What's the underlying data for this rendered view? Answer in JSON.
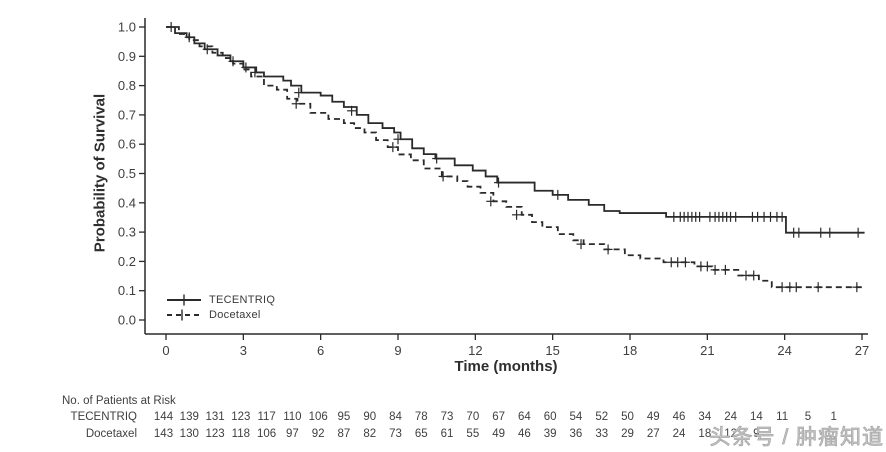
{
  "chart_data": {
    "type": "line",
    "subtype": "kaplan-meier-step",
    "title": "",
    "xlabel": "Time (months)",
    "ylabel": "Probability of Survival",
    "xlim": [
      0,
      27
    ],
    "ylim": [
      0.0,
      1.0
    ],
    "x_ticks": [
      0,
      3,
      6,
      9,
      12,
      15,
      18,
      21,
      24,
      27
    ],
    "y_ticks": [
      "0.0",
      "0.1",
      "0.2",
      "0.3",
      "0.4",
      "0.5",
      "0.6",
      "0.7",
      "0.8",
      "0.9",
      "1.0"
    ],
    "grid": false,
    "legend_position": "inside-lower-left",
    "curve_color": "#2a2a2a",
    "series": [
      {
        "name": "TECENTRIQ",
        "style": "solid",
        "steps": [
          [
            0,
            1.0
          ],
          [
            0.35,
            0.979
          ],
          [
            0.8,
            0.965
          ],
          [
            1.1,
            0.944
          ],
          [
            1.5,
            0.924
          ],
          [
            2.0,
            0.903
          ],
          [
            2.5,
            0.883
          ],
          [
            3.0,
            0.862
          ],
          [
            3.5,
            0.845
          ],
          [
            3.8,
            0.831
          ],
          [
            4.55,
            0.817
          ],
          [
            4.85,
            0.8
          ],
          [
            5.25,
            0.776
          ],
          [
            6.0,
            0.766
          ],
          [
            6.45,
            0.745
          ],
          [
            6.9,
            0.727
          ],
          [
            7.4,
            0.7
          ],
          [
            7.85,
            0.672
          ],
          [
            8.4,
            0.655
          ],
          [
            8.85,
            0.64
          ],
          [
            9.1,
            0.617
          ],
          [
            9.55,
            0.586
          ],
          [
            10.0,
            0.566
          ],
          [
            10.45,
            0.551
          ],
          [
            11.2,
            0.528
          ],
          [
            11.9,
            0.51
          ],
          [
            12.4,
            0.49
          ],
          [
            12.85,
            0.469
          ],
          [
            14.3,
            0.441
          ],
          [
            15.0,
            0.427
          ],
          [
            15.6,
            0.41
          ],
          [
            16.4,
            0.393
          ],
          [
            17.0,
            0.372
          ],
          [
            17.6,
            0.365
          ],
          [
            19.4,
            0.352
          ],
          [
            24.05,
            0.298
          ],
          [
            27.1,
            0.298
          ]
        ],
        "censors": [
          [
            0.2,
            1.0
          ],
          [
            0.9,
            0.965
          ],
          [
            1.6,
            0.924
          ],
          [
            2.6,
            0.883
          ],
          [
            3.1,
            0.862
          ],
          [
            3.45,
            0.845
          ],
          [
            5.15,
            0.776
          ],
          [
            7.2,
            0.714
          ],
          [
            9.0,
            0.617
          ],
          [
            10.5,
            0.551
          ],
          [
            12.9,
            0.469
          ],
          [
            15.2,
            0.427
          ],
          [
            19.7,
            0.352
          ],
          [
            19.95,
            0.352
          ],
          [
            20.1,
            0.352
          ],
          [
            20.25,
            0.352
          ],
          [
            20.4,
            0.352
          ],
          [
            20.55,
            0.352
          ],
          [
            20.7,
            0.352
          ],
          [
            21.1,
            0.352
          ],
          [
            21.3,
            0.352
          ],
          [
            21.45,
            0.352
          ],
          [
            21.6,
            0.352
          ],
          [
            21.75,
            0.352
          ],
          [
            21.9,
            0.352
          ],
          [
            22.1,
            0.352
          ],
          [
            22.75,
            0.352
          ],
          [
            22.95,
            0.352
          ],
          [
            23.2,
            0.352
          ],
          [
            23.45,
            0.352
          ],
          [
            23.7,
            0.352
          ],
          [
            23.9,
            0.352
          ],
          [
            24.35,
            0.298
          ],
          [
            24.55,
            0.298
          ],
          [
            25.4,
            0.298
          ],
          [
            25.75,
            0.298
          ],
          [
            26.85,
            0.298
          ]
        ]
      },
      {
        "name": "Docetaxel",
        "style": "dashed",
        "steps": [
          [
            0,
            1.0
          ],
          [
            0.5,
            0.976
          ],
          [
            0.9,
            0.955
          ],
          [
            1.3,
            0.934
          ],
          [
            1.8,
            0.912
          ],
          [
            2.2,
            0.894
          ],
          [
            2.6,
            0.875
          ],
          [
            3.0,
            0.855
          ],
          [
            3.3,
            0.831
          ],
          [
            3.8,
            0.8
          ],
          [
            4.3,
            0.786
          ],
          [
            4.7,
            0.755
          ],
          [
            5.1,
            0.738
          ],
          [
            5.6,
            0.707
          ],
          [
            6.3,
            0.686
          ],
          [
            6.9,
            0.672
          ],
          [
            7.3,
            0.655
          ],
          [
            7.7,
            0.64
          ],
          [
            8.15,
            0.614
          ],
          [
            8.6,
            0.59
          ],
          [
            9.0,
            0.565
          ],
          [
            9.5,
            0.545
          ],
          [
            10.0,
            0.517
          ],
          [
            10.7,
            0.49
          ],
          [
            11.3,
            0.474
          ],
          [
            11.7,
            0.455
          ],
          [
            12.2,
            0.434
          ],
          [
            12.7,
            0.405
          ],
          [
            13.2,
            0.386
          ],
          [
            13.8,
            0.359
          ],
          [
            14.2,
            0.334
          ],
          [
            14.6,
            0.317
          ],
          [
            15.2,
            0.293
          ],
          [
            15.8,
            0.272
          ],
          [
            16.2,
            0.259
          ],
          [
            17.0,
            0.241
          ],
          [
            17.8,
            0.221
          ],
          [
            18.4,
            0.21
          ],
          [
            19.3,
            0.197
          ],
          [
            20.5,
            0.183
          ],
          [
            21.2,
            0.171
          ],
          [
            22.2,
            0.152
          ],
          [
            23.0,
            0.134
          ],
          [
            23.5,
            0.112
          ],
          [
            27.0,
            0.112
          ]
        ],
        "censors": [
          [
            5.05,
            0.738
          ],
          [
            8.8,
            0.59
          ],
          [
            10.75,
            0.49
          ],
          [
            12.6,
            0.405
          ],
          [
            13.6,
            0.359
          ],
          [
            16.1,
            0.259
          ],
          [
            17.15,
            0.241
          ],
          [
            19.6,
            0.197
          ],
          [
            19.85,
            0.197
          ],
          [
            20.15,
            0.197
          ],
          [
            20.75,
            0.183
          ],
          [
            21.0,
            0.183
          ],
          [
            21.3,
            0.171
          ],
          [
            21.7,
            0.171
          ],
          [
            22.5,
            0.152
          ],
          [
            22.8,
            0.152
          ],
          [
            23.9,
            0.112
          ],
          [
            24.2,
            0.112
          ],
          [
            24.45,
            0.112
          ],
          [
            25.3,
            0.112
          ],
          [
            26.8,
            0.112
          ]
        ]
      }
    ]
  },
  "risk_table": {
    "title": "No. of Patients at Risk",
    "rows": [
      {
        "label": "TECENTRIQ",
        "counts": [
          144,
          139,
          131,
          123,
          117,
          110,
          106,
          95,
          90,
          84,
          78,
          73,
          70,
          67,
          64,
          60,
          54,
          52,
          50,
          49,
          46,
          34,
          24,
          14,
          11,
          5,
          1
        ]
      },
      {
        "label": "Docetaxel",
        "counts": [
          143,
          130,
          123,
          118,
          106,
          97,
          92,
          87,
          82,
          73,
          65,
          61,
          55,
          49,
          46,
          39,
          36,
          33,
          29,
          27,
          24,
          18,
          12,
          9
        ]
      }
    ]
  },
  "watermark": {
    "text": "头条号 / 肿瘤知道"
  },
  "colors": {
    "curve": "#2a2a2a",
    "text": "#3f3f3f",
    "watermark": "#c9c9c9"
  }
}
